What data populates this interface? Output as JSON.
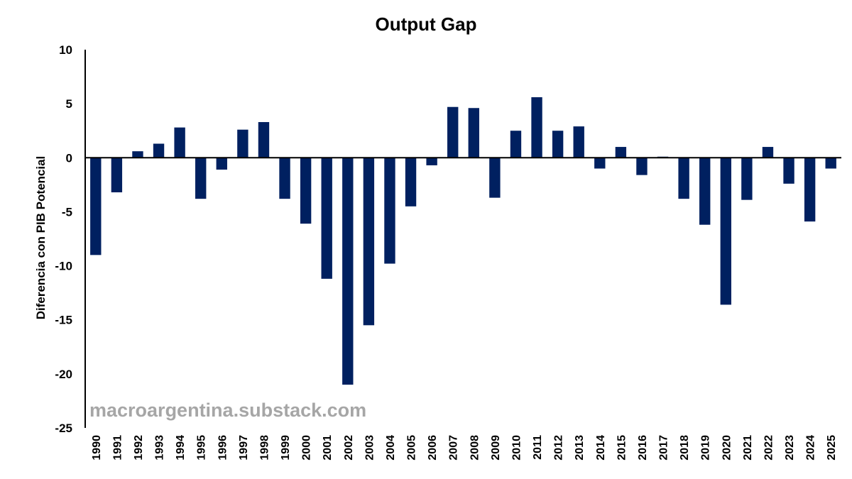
{
  "chart_data": {
    "type": "bar",
    "title": "Output Gap",
    "xlabel": "",
    "ylabel": "Diferencia con PIB Potencial",
    "ylim": [
      -25,
      10
    ],
    "yticks": [
      10,
      5,
      0,
      -5,
      -10,
      -15,
      -20,
      -25
    ],
    "grid": false,
    "legend": "none",
    "bar_color": "#002060",
    "categories": [
      "1990",
      "1991",
      "1992",
      "1993",
      "1994",
      "1995",
      "1996",
      "1997",
      "1998",
      "1999",
      "2000",
      "2001",
      "2002",
      "2003",
      "2004",
      "2005",
      "2006",
      "2007",
      "2008",
      "2009",
      "2010",
      "2011",
      "2012",
      "2013",
      "2014",
      "2015",
      "2016",
      "2017",
      "2018",
      "2019",
      "2020",
      "2021",
      "2022",
      "2023",
      "2024",
      "2025"
    ],
    "values": [
      -9.0,
      -3.2,
      0.6,
      1.3,
      2.8,
      -3.8,
      -1.1,
      2.6,
      3.3,
      -3.8,
      -6.1,
      -11.2,
      -21.0,
      -15.5,
      -9.8,
      -4.5,
      -0.7,
      4.7,
      4.6,
      -3.7,
      2.5,
      5.6,
      2.5,
      2.9,
      -1.0,
      1.0,
      -1.6,
      0.1,
      -3.8,
      -6.2,
      -13.6,
      -3.9,
      1.0,
      -2.4,
      -5.9,
      -1.0
    ]
  },
  "watermark": "macroargentina.substack.com"
}
